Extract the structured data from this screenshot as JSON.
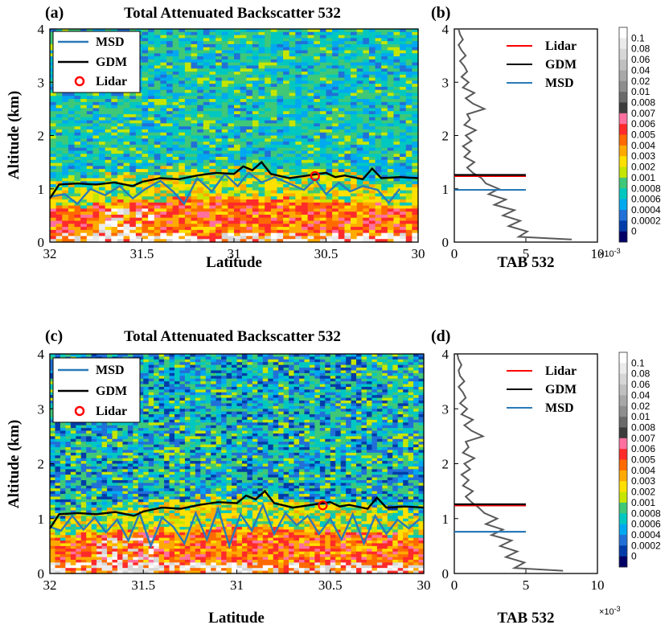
{
  "colors": {
    "msd": "#2a7ab8",
    "gdm": "#000000",
    "lidar": "#ff0000",
    "profile": "#595959"
  },
  "colorbar": {
    "labels": [
      "0.1",
      "0.08",
      "0.06",
      "0.04",
      "0.02",
      "0.01",
      "0.008",
      "0.007",
      "0.006",
      "0.005",
      "0.004",
      "0.003",
      "0.002",
      "0.001",
      "0.0008",
      "0.0006",
      "0.0004",
      "0.0002",
      "0"
    ],
    "colors": [
      "#ffffff",
      "#ebebeb",
      "#d6d6d6",
      "#c0c0c0",
      "#a8a8a8",
      "#8e8e8e",
      "#6a6a6a",
      "#3c3c3c",
      "#ff70a0",
      "#ff2a2a",
      "#ff6a00",
      "#ffaa00",
      "#ffe000",
      "#c6e600",
      "#3ec878",
      "#00c8c0",
      "#00a8f0",
      "#2070d8",
      "#003ca8",
      "#000066"
    ]
  },
  "chart_data": [
    {
      "panel": "(a)",
      "type": "heatmap",
      "title": "Total Attenuated Backscatter 532",
      "xlabel": "Latitude",
      "ylabel": "Altitude (km)",
      "xlim": [
        32,
        30
      ],
      "ylim": [
        0,
        4
      ],
      "xticks": [
        "32",
        "31.5",
        "31",
        "30.5",
        "30"
      ],
      "yticks": [
        "0",
        "1",
        "2",
        "3",
        "4"
      ],
      "legend_position": "top-left",
      "series": [
        {
          "name": "MSD",
          "style": "line",
          "x": [
            32,
            31.92,
            31.85,
            31.78,
            31.7,
            31.62,
            31.55,
            31.48,
            31.4,
            31.33,
            31.27,
            31.2,
            31.12,
            31.05,
            30.98,
            30.92,
            30.85,
            30.78,
            30.7,
            30.62,
            30.56,
            30.5,
            30.43,
            30.37,
            30.3,
            30.22,
            30.16,
            30.1
          ],
          "y": [
            0.85,
            0.9,
            0.72,
            1.0,
            0.88,
            1.05,
            0.82,
            1.0,
            1.15,
            0.95,
            0.72,
            1.2,
            0.95,
            1.28,
            1.05,
            1.3,
            1.12,
            1.22,
            1.1,
            0.98,
            1.18,
            0.9,
            1.12,
            0.95,
            1.05,
            0.98,
            0.74,
            1.0
          ]
        },
        {
          "name": "GDM",
          "style": "line",
          "x": [
            32,
            31.95,
            31.85,
            31.75,
            31.65,
            31.55,
            31.5,
            31.4,
            31.3,
            31.2,
            31.1,
            31,
            30.95,
            30.9,
            30.85,
            30.8,
            30.7,
            30.6,
            30.5,
            30.45,
            30.4,
            30.3,
            30.25,
            30.2,
            30.1,
            30
          ],
          "y": [
            0.82,
            1.08,
            1.1,
            1.08,
            1.12,
            1.05,
            1.13,
            1.2,
            1.18,
            1.25,
            1.3,
            1.28,
            1.42,
            1.35,
            1.5,
            1.28,
            1.2,
            1.25,
            1.3,
            1.22,
            1.25,
            1.18,
            1.38,
            1.2,
            1.22,
            1.2
          ]
        },
        {
          "name": "Lidar",
          "style": "marker",
          "x": [
            30.56
          ],
          "y": [
            1.24
          ]
        }
      ]
    },
    {
      "panel": "(b)",
      "type": "line",
      "xlabel": "TAB 532",
      "x_exponent": "×10^-3",
      "xlim": [
        0,
        10
      ],
      "ylim": [
        0,
        4
      ],
      "xticks": [
        "0",
        "5",
        "10"
      ],
      "yticks": [
        "0",
        "1",
        "2",
        "3",
        "4"
      ],
      "legend_position": "top-right",
      "profile": {
        "altitude": [
          0.05,
          0.1,
          0.2,
          0.3,
          0.4,
          0.5,
          0.6,
          0.7,
          0.8,
          0.9,
          1.0,
          1.1,
          1.2,
          1.3,
          1.4,
          1.5,
          1.6,
          1.7,
          1.8,
          1.9,
          2.0,
          2.1,
          2.2,
          2.3,
          2.4,
          2.5,
          2.6,
          2.7,
          2.8,
          2.9,
          3.0,
          3.1,
          3.2,
          3.3,
          3.4,
          3.5,
          3.6,
          3.7,
          3.8,
          3.9,
          4.0
        ],
        "tab_x1e3": [
          8.2,
          4.5,
          5.1,
          3.8,
          4.6,
          3.4,
          4.2,
          2.8,
          3.6,
          2.4,
          3.1,
          2.2,
          1.9,
          1.3,
          0.9,
          1.4,
          0.7,
          1.1,
          0.6,
          1.2,
          0.8,
          1.5,
          0.7,
          1.1,
          0.9,
          2.1,
          1.3,
          0.8,
          1.4,
          0.6,
          1.0,
          0.5,
          0.9,
          0.7,
          0.4,
          0.8,
          0.5,
          0.3,
          0.6,
          0.4,
          0.3
        ]
      },
      "series": [
        {
          "name": "Lidar",
          "altitude": 1.24,
          "tab_x1e3": [
            0,
            5
          ]
        },
        {
          "name": "GDM",
          "altitude": 1.26,
          "tab_x1e3": [
            0,
            5
          ]
        },
        {
          "name": "MSD",
          "altitude": 0.98,
          "tab_x1e3": [
            0,
            5
          ]
        }
      ]
    },
    {
      "panel": "(c)",
      "type": "heatmap",
      "title": "Total Attenuated Backscatter 532",
      "xlabel": "Latitude",
      "ylabel": "Altitude (km)",
      "xlim": [
        32,
        30
      ],
      "ylim": [
        0,
        4
      ],
      "xticks": [
        "32",
        "31.5",
        "31",
        "30.5",
        "30"
      ],
      "yticks": [
        "0",
        "1",
        "2",
        "3",
        "4"
      ],
      "legend_position": "top-left",
      "series": [
        {
          "name": "MSD",
          "style": "line",
          "x": [
            32,
            31.94,
            31.88,
            31.82,
            31.76,
            31.7,
            31.64,
            31.58,
            31.52,
            31.46,
            31.4,
            31.34,
            31.28,
            31.22,
            31.16,
            31.1,
            31.04,
            30.98,
            30.92,
            30.86,
            30.8,
            30.74,
            30.68,
            30.62,
            30.56,
            30.5,
            30.44,
            30.38,
            30.32,
            30.26,
            30.2,
            30.14,
            30.08,
            30.02
          ],
          "y": [
            0.85,
            0.78,
            1.05,
            0.8,
            1.02,
            0.75,
            0.98,
            0.6,
            1.1,
            0.5,
            1.02,
            0.85,
            0.55,
            1.1,
            0.62,
            1.18,
            0.5,
            1.08,
            0.78,
            1.25,
            0.72,
            1.1,
            0.88,
            1.05,
            0.72,
            1.0,
            0.62,
            1.08,
            0.55,
            1.05,
            0.72,
            0.98,
            0.82,
            1.0
          ]
        },
        {
          "name": "GDM",
          "style": "line",
          "x": [
            32,
            31.95,
            31.85,
            31.75,
            31.65,
            31.55,
            31.5,
            31.4,
            31.3,
            31.2,
            31.1,
            31,
            30.95,
            30.9,
            30.85,
            30.8,
            30.7,
            30.6,
            30.5,
            30.45,
            30.4,
            30.3,
            30.25,
            30.2,
            30.1,
            30
          ],
          "y": [
            0.82,
            1.08,
            1.1,
            1.08,
            1.12,
            1.05,
            1.13,
            1.2,
            1.18,
            1.25,
            1.3,
            1.28,
            1.42,
            1.35,
            1.5,
            1.28,
            1.2,
            1.25,
            1.3,
            1.22,
            1.25,
            1.18,
            1.38,
            1.2,
            1.22,
            1.2
          ]
        },
        {
          "name": "Lidar",
          "style": "marker",
          "x": [
            30.54
          ],
          "y": [
            1.24
          ]
        }
      ]
    },
    {
      "panel": "(d)",
      "type": "line",
      "xlabel": "TAB 532",
      "x_exponent": "×10^-3",
      "xlim": [
        0,
        10
      ],
      "ylim": [
        0,
        4
      ],
      "xticks": [
        "0",
        "5",
        "10"
      ],
      "yticks": [
        "0",
        "1",
        "2",
        "3",
        "4"
      ],
      "legend_position": "top-right",
      "profile": {
        "altitude": [
          0.05,
          0.1,
          0.2,
          0.3,
          0.4,
          0.5,
          0.6,
          0.7,
          0.8,
          0.9,
          1.0,
          1.1,
          1.2,
          1.3,
          1.4,
          1.5,
          1.6,
          1.7,
          1.8,
          1.9,
          2.0,
          2.1,
          2.2,
          2.3,
          2.4,
          2.5,
          2.6,
          2.7,
          2.8,
          2.9,
          3.0,
          3.1,
          3.2,
          3.3,
          3.4,
          3.5,
          3.6,
          3.7,
          3.8,
          3.9,
          4.0
        ],
        "tab_x1e3": [
          7.6,
          4.2,
          4.9,
          3.6,
          4.4,
          3.2,
          4.0,
          2.6,
          3.4,
          2.2,
          3.0,
          2.1,
          1.7,
          1.2,
          0.8,
          1.3,
          0.6,
          1.0,
          0.5,
          1.1,
          0.7,
          1.4,
          0.6,
          1.0,
          0.8,
          2.0,
          1.2,
          0.7,
          1.3,
          0.5,
          0.9,
          0.4,
          0.8,
          0.6,
          0.3,
          0.7,
          0.4,
          0.3,
          0.5,
          0.3,
          0.2
        ]
      },
      "series": [
        {
          "name": "Lidar",
          "altitude": 1.24,
          "tab_x1e3": [
            0,
            5
          ]
        },
        {
          "name": "GDM",
          "altitude": 1.26,
          "tab_x1e3": [
            0,
            5
          ]
        },
        {
          "name": "MSD",
          "altitude": 0.76,
          "tab_x1e3": [
            0,
            5
          ]
        }
      ]
    }
  ]
}
